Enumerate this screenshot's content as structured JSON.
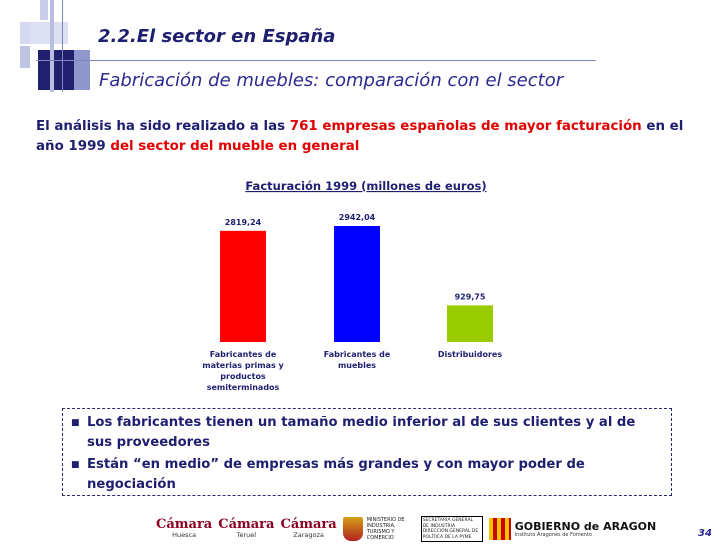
{
  "header": {
    "section_title": "2.2.El sector en España",
    "subtitle": "Fabricación de muebles: comparación con el sector"
  },
  "intro": {
    "part1": "El análisis ha sido realizado a las ",
    "part2": "761 empresas españolas de mayor facturación",
    "part3": " en el año 1999 ",
    "part4": "del sector del mueble en general"
  },
  "chart_data": {
    "type": "bar",
    "title": "Facturación 1999 (millones de euros)",
    "categories": [
      "Fabricantes de materias primas y productos semiterminados",
      "Fabricantes de muebles",
      "Distribuidores"
    ],
    "category_lines": [
      [
        "Fabricantes de",
        "materias primas y",
        "productos",
        "semiterminados"
      ],
      [
        "Fabricantes de",
        "muebles"
      ],
      [
        "Distribuidores"
      ]
    ],
    "values": [
      2819.24,
      2942.04,
      929.75
    ],
    "value_labels": [
      "2819,24",
      "2942,04",
      "929,75"
    ],
    "colors": [
      "#ff0000",
      "#0000ff",
      "#99cc00"
    ],
    "ylim": [
      0,
      2942.04
    ],
    "grid": false,
    "legend": "none"
  },
  "bullets": [
    "Los fabricantes tienen un tamaño medio inferior al de sus clientes y al de sus proveedores",
    "Están “en medio” de empresas más grandes y con mayor poder de negociación"
  ],
  "footer": {
    "logos": {
      "camara_label": "Cámara",
      "camara_cities": [
        "Huesca",
        "Teruel",
        "Zaragoza"
      ],
      "ministerio": "MINISTERIO DE INDUSTRIA, TURISMO Y COMERCIO",
      "secretaria": "SECRETARÍA GENERAL DE INDUSTRIA",
      "direccion": "DIRECCIÓN GENERAL DE POLÍTICA DE LA PYME",
      "gobierno": "GOBIERNO de ARAGON",
      "instituto": "Instituto Aragonés de Fomento"
    },
    "page_number": "34"
  }
}
